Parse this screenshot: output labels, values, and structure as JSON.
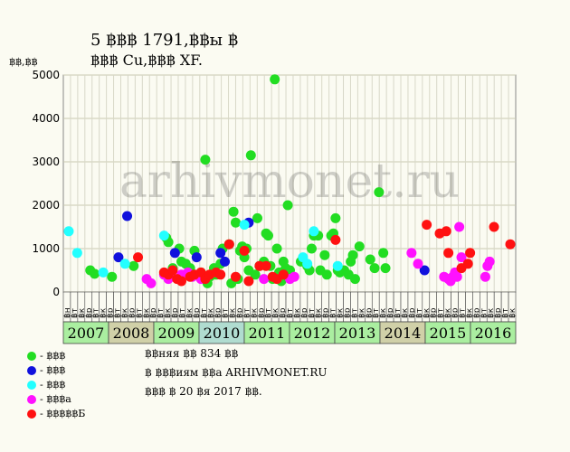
{
  "title_line1": "5 ฿฿฿ 1791,฿฿ы ฿",
  "title_line2": "฿฿฿ Cu,฿฿฿ XF.",
  "y_unit_label": "฿฿,฿฿",
  "watermark": "arhivmonet.ru",
  "legend": [
    {
      "label": "- ฿฿฿",
      "color": "#22dd22"
    },
    {
      "label": "- ฿฿฿",
      "color": "#1111dd"
    },
    {
      "label": "- ฿฿฿",
      "color": "#22ffff"
    },
    {
      "label": "- ฿฿฿а",
      "color": "#ff11ff"
    },
    {
      "label": "- ฿฿฿฿฿Б",
      "color": "#ff1111"
    }
  ],
  "notes": [
    "฿฿няя ฿฿ 834 ฿฿",
    "฿ ฿฿฿иям ฿฿а ARHIVMONET.RU",
    "฿฿฿ ฿ 20 ฿я 2017 ฿฿."
  ],
  "chart_data": {
    "type": "scatter",
    "ylim": [
      0,
      5000
    ],
    "yticks": [
      0,
      1000,
      2000,
      3000,
      4000,
      5000
    ],
    "grid": true,
    "x_axis": "date (years)",
    "month_labels": [
      "฿н",
      "฿т",
      "฿к",
      "฿р",
      "฿т",
      "฿к",
      "฿р",
      "฿т",
      "฿к",
      "฿р",
      "฿т",
      "฿к",
      "฿р",
      "฿т",
      "฿к",
      "฿р",
      "฿т",
      "฿к",
      "฿р",
      "฿т",
      "฿к",
      "฿р",
      "฿т",
      "฿к",
      "฿р",
      "฿т",
      "฿к",
      "฿р",
      "฿т",
      "฿к",
      "฿р",
      "฿т",
      "฿к",
      "฿р",
      "฿т",
      "฿к",
      "฿р",
      "฿т",
      "฿к",
      "฿р",
      "฿т",
      "฿к",
      "฿р",
      "฿т",
      "฿к",
      "฿р",
      "฿т",
      "฿к",
      "฿р",
      "฿т",
      "฿к",
      "฿р",
      "฿т",
      "฿к",
      "฿р",
      "฿т",
      "฿к",
      "฿р",
      "฿т",
      "฿к",
      "฿р",
      "฿т",
      "฿к"
    ],
    "years": [
      {
        "label": "2007",
        "color": "#aaeea0"
      },
      {
        "label": "2008",
        "color": "#d0d0a8"
      },
      {
        "label": "2009",
        "color": "#aaeea0"
      },
      {
        "label": "2010",
        "color": "#b0dcd0"
      },
      {
        "label": "2011",
        "color": "#aaeea0"
      },
      {
        "label": "2012",
        "color": "#aaeea0"
      },
      {
        "label": "2013",
        "color": "#aaeea0"
      },
      {
        "label": "2014",
        "color": "#d0d0a8"
      },
      {
        "label": "2015",
        "color": "#aaeea0"
      },
      {
        "label": "2016",
        "color": "#aaeea0"
      }
    ],
    "series": [
      {
        "color": "#22dd22",
        "points": [
          [
            2007.3,
            500
          ],
          [
            2007.4,
            420
          ],
          [
            2007.8,
            350
          ],
          [
            2008.3,
            600
          ],
          [
            2009.05,
            1250
          ],
          [
            2009.1,
            1150
          ],
          [
            2009.2,
            550
          ],
          [
            2009.35,
            1000
          ],
          [
            2009.4,
            700
          ],
          [
            2009.5,
            650
          ],
          [
            2009.6,
            550
          ],
          [
            2009.7,
            950
          ],
          [
            2009.85,
            450
          ],
          [
            2009.95,
            3050
          ],
          [
            2010.0,
            200
          ],
          [
            2010.05,
            350
          ],
          [
            2010.15,
            550
          ],
          [
            2010.2,
            400
          ],
          [
            2010.3,
            650
          ],
          [
            2010.35,
            1000
          ],
          [
            2010.5,
            1100
          ],
          [
            2010.55,
            200
          ],
          [
            2010.6,
            1850
          ],
          [
            2010.65,
            1600
          ],
          [
            2010.7,
            300
          ],
          [
            2010.75,
            950
          ],
          [
            2010.8,
            1050
          ],
          [
            2010.85,
            800
          ],
          [
            2010.9,
            1000
          ],
          [
            2010.95,
            500
          ],
          [
            2011.0,
            3150
          ],
          [
            2011.1,
            400
          ],
          [
            2011.15,
            1700
          ],
          [
            2011.2,
            600
          ],
          [
            2011.3,
            700
          ],
          [
            2011.35,
            1350
          ],
          [
            2011.4,
            1300
          ],
          [
            2011.45,
            600
          ],
          [
            2011.5,
            300
          ],
          [
            2011.55,
            4900
          ],
          [
            2011.6,
            1000
          ],
          [
            2011.65,
            450
          ],
          [
            2011.7,
            250
          ],
          [
            2011.75,
            700
          ],
          [
            2011.8,
            550
          ],
          [
            2011.85,
            2000
          ],
          [
            2011.9,
            500
          ],
          [
            2012.15,
            700
          ],
          [
            2012.3,
            600
          ],
          [
            2012.35,
            500
          ],
          [
            2012.4,
            1000
          ],
          [
            2012.45,
            1300
          ],
          [
            2012.55,
            1300
          ],
          [
            2012.6,
            500
          ],
          [
            2012.7,
            850
          ],
          [
            2012.75,
            400
          ],
          [
            2012.85,
            1300
          ],
          [
            2012.9,
            1350
          ],
          [
            2012.95,
            1700
          ],
          [
            2013.0,
            500
          ],
          [
            2013.05,
            450
          ],
          [
            2013.15,
            500
          ],
          [
            2013.25,
            400
          ],
          [
            2013.3,
            700
          ],
          [
            2013.35,
            850
          ],
          [
            2013.4,
            300
          ],
          [
            2013.5,
            1050
          ],
          [
            2013.75,
            750
          ],
          [
            2013.85,
            550
          ],
          [
            2013.95,
            2300
          ],
          [
            2014.05,
            900
          ],
          [
            2014.1,
            550
          ]
        ]
      },
      {
        "color": "#1111dd",
        "points": [
          [
            2007.95,
            800
          ],
          [
            2008.15,
            1750
          ],
          [
            2009.25,
            900
          ],
          [
            2009.75,
            800
          ],
          [
            2010.3,
            900
          ],
          [
            2010.4,
            700
          ],
          [
            2010.95,
            1600
          ],
          [
            2015.0,
            500
          ]
        ]
      },
      {
        "color": "#22ffff",
        "points": [
          [
            2006.75,
            1400
          ],
          [
            2007.0,
            900
          ],
          [
            2007.6,
            450
          ],
          [
            2008.1,
            650
          ],
          [
            2009.0,
            1300
          ],
          [
            2010.85,
            1550
          ],
          [
            2012.2,
            800
          ],
          [
            2012.3,
            650
          ],
          [
            2012.45,
            1400
          ],
          [
            2013.0,
            600
          ]
        ]
      },
      {
        "color": "#ff11ff",
        "points": [
          [
            2008.6,
            300
          ],
          [
            2008.7,
            200
          ],
          [
            2009.0,
            400
          ],
          [
            2009.1,
            300
          ],
          [
            2009.15,
            350
          ],
          [
            2009.4,
            400
          ],
          [
            2009.55,
            450
          ],
          [
            2009.65,
            350
          ],
          [
            2009.85,
            300
          ],
          [
            2011.3,
            300
          ],
          [
            2011.9,
            300
          ],
          [
            2012.0,
            350
          ],
          [
            2014.7,
            900
          ],
          [
            2014.85,
            650
          ],
          [
            2015.45,
            350
          ],
          [
            2015.55,
            300
          ],
          [
            2015.6,
            250
          ],
          [
            2015.65,
            350
          ],
          [
            2015.7,
            450
          ],
          [
            2015.75,
            350
          ],
          [
            2015.8,
            1500
          ],
          [
            2015.85,
            800
          ],
          [
            2016.4,
            350
          ],
          [
            2016.45,
            600
          ],
          [
            2016.5,
            700
          ]
        ]
      },
      {
        "color": "#ff1111",
        "points": [
          [
            2008.4,
            800
          ],
          [
            2009.0,
            450
          ],
          [
            2009.1,
            400
          ],
          [
            2009.2,
            500
          ],
          [
            2009.3,
            300
          ],
          [
            2009.4,
            250
          ],
          [
            2009.6,
            350
          ],
          [
            2009.7,
            400
          ],
          [
            2009.85,
            450
          ],
          [
            2009.95,
            300
          ],
          [
            2010.05,
            400
          ],
          [
            2010.2,
            450
          ],
          [
            2010.3,
            400
          ],
          [
            2010.5,
            1100
          ],
          [
            2010.65,
            350
          ],
          [
            2010.85,
            950
          ],
          [
            2010.95,
            250
          ],
          [
            2011.2,
            600
          ],
          [
            2011.35,
            600
          ],
          [
            2011.5,
            350
          ],
          [
            2011.6,
            300
          ],
          [
            2011.75,
            400
          ],
          [
            2012.95,
            1200
          ],
          [
            2015.05,
            1550
          ],
          [
            2015.35,
            1350
          ],
          [
            2015.5,
            1400
          ],
          [
            2015.55,
            900
          ],
          [
            2015.85,
            550
          ],
          [
            2016.0,
            650
          ],
          [
            2016.05,
            900
          ],
          [
            2016.6,
            1500
          ],
          [
            2017.0,
            1100
          ]
        ]
      }
    ]
  }
}
